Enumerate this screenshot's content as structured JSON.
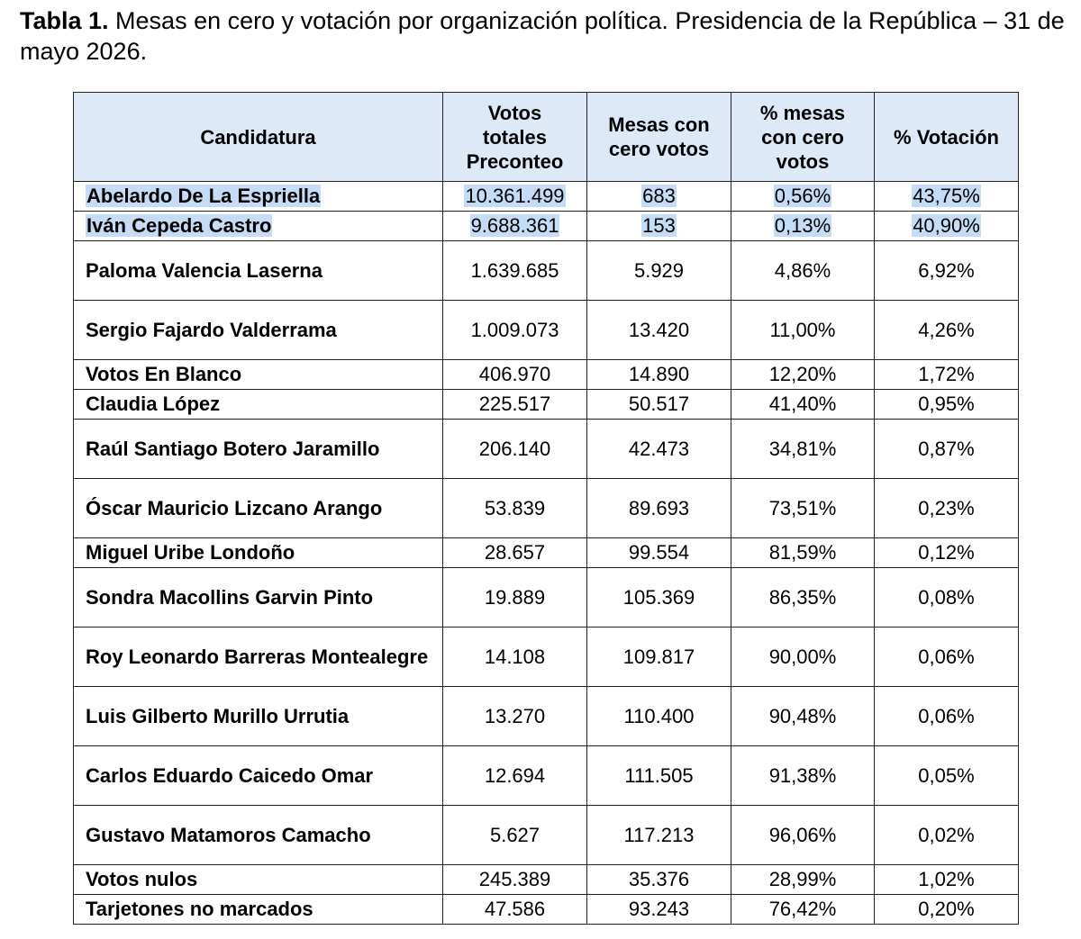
{
  "title": {
    "bold": "Tabla 1.",
    "rest": " Mesas en cero y votación por organización política. Presidencia de la República – 31 de mayo 2026."
  },
  "columns": [
    "Candidatura",
    "Votos totales Preconteo",
    "Mesas con cero votos",
    "% mesas con cero votos",
    "% Votación"
  ],
  "rows": [
    {
      "name": "Abelardo De La Espriella",
      "votes": "10.361.499",
      "zero": "683",
      "pzero": "0,56%",
      "pvote": "43,75%"
    },
    {
      "name": "Iván Cepeda Castro",
      "votes": "9.688.361",
      "zero": "153",
      "pzero": "0,13%",
      "pvote": "40,90%"
    },
    {
      "name": "Paloma Valencia Laserna",
      "votes": "1.639.685",
      "zero": "5.929",
      "pzero": "4,86%",
      "pvote": "6,92%"
    },
    {
      "name": "Sergio Fajardo Valderrama",
      "votes": "1.009.073",
      "zero": "13.420",
      "pzero": "11,00%",
      "pvote": "4,26%"
    },
    {
      "name": "Votos En Blanco",
      "votes": "406.970",
      "zero": "14.890",
      "pzero": "12,20%",
      "pvote": "1,72%"
    },
    {
      "name": "Claudia López",
      "votes": "225.517",
      "zero": "50.517",
      "pzero": "41,40%",
      "pvote": "0,95%"
    },
    {
      "name": "Raúl Santiago Botero Jaramillo",
      "votes": "206.140",
      "zero": "42.473",
      "pzero": "34,81%",
      "pvote": "0,87%"
    },
    {
      "name": "Óscar Mauricio Lizcano Arango",
      "votes": "53.839",
      "zero": "89.693",
      "pzero": "73,51%",
      "pvote": "0,23%"
    },
    {
      "name": "Miguel Uribe Londoño",
      "votes": "28.657",
      "zero": "99.554",
      "pzero": "81,59%",
      "pvote": "0,12%"
    },
    {
      "name": "Sondra Macollins Garvin Pinto",
      "votes": "19.889",
      "zero": "105.369",
      "pzero": "86,35%",
      "pvote": "0,08%"
    },
    {
      "name": "Roy Leonardo Barreras Montealegre",
      "votes": "14.108",
      "zero": "109.817",
      "pzero": "90,00%",
      "pvote": "0,06%"
    },
    {
      "name": "Luis Gilberto Murillo Urrutia",
      "votes": "13.270",
      "zero": "110.400",
      "pzero": "90,48%",
      "pvote": "0,06%"
    },
    {
      "name": "Carlos Eduardo Caicedo Omar",
      "votes": "12.694",
      "zero": "111.505",
      "pzero": "91,38%",
      "pvote": "0,05%"
    },
    {
      "name": "Gustavo Matamoros Camacho",
      "votes": "5.627",
      "zero": "117.213",
      "pzero": "96,06%",
      "pvote": "0,02%"
    },
    {
      "name": "Votos nulos",
      "votes": "245.389",
      "zero": "35.376",
      "pzero": "28,99%",
      "pvote": "1,02%"
    },
    {
      "name": "Tarjetones no marcados",
      "votes": "47.586",
      "zero": "93.243",
      "pzero": "76,42%",
      "pvote": "0,20%"
    }
  ],
  "highlight_color": "#c4dcf5",
  "header_color": "#dde9f7"
}
